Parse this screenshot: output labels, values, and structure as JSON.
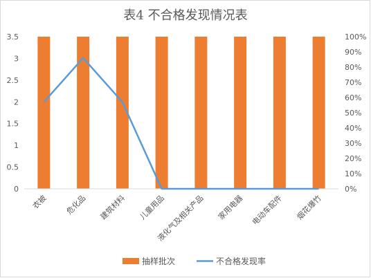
{
  "chart_data": {
    "type": "bar",
    "title": "表4 不合格发现情况表",
    "categories": [
      "衣被",
      "危化品",
      "建筑材料",
      "儿童用品",
      "液化气及相关产品",
      "家用电器",
      "电动车配件",
      "烟花爆竹"
    ],
    "series": [
      {
        "name": "抽样批次",
        "type": "bar",
        "axis": "left",
        "color": "#ed7d31",
        "values": [
          3.5,
          3.5,
          3.5,
          3.5,
          3.5,
          3.5,
          3.5,
          3.5
        ]
      },
      {
        "name": "不合格发现率",
        "type": "line",
        "axis": "right",
        "color": "#5b9bd5",
        "values": [
          0.57,
          0.86,
          0.57,
          0,
          0,
          0,
          0,
          0
        ]
      }
    ],
    "y_left": {
      "ylim": [
        0,
        3.5
      ],
      "ticks": [
        "0",
        "0.5",
        "1",
        "1.5",
        "2",
        "2.5",
        "3",
        "3.5"
      ]
    },
    "y_right": {
      "ylim": [
        0,
        1
      ],
      "ticks": [
        "0%",
        "10%",
        "20%",
        "30%",
        "40%",
        "50%",
        "60%",
        "70%",
        "80%",
        "90%",
        "100%"
      ]
    },
    "grid": false,
    "legend_position": "bottom"
  }
}
